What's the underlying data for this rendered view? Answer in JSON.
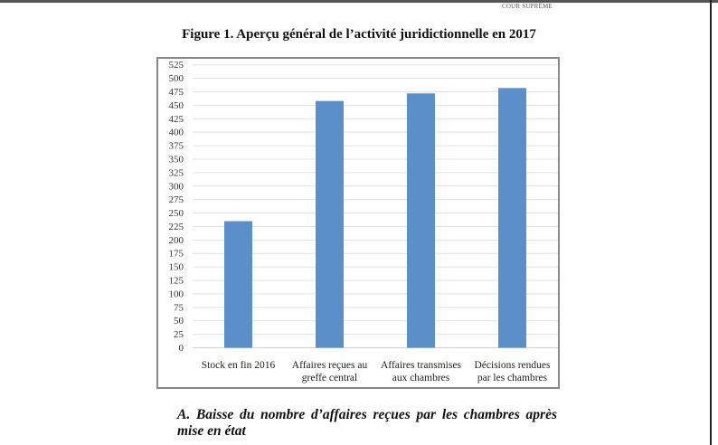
{
  "header": {
    "running_head": "COUR SUPRÊME"
  },
  "figure": {
    "title": "Figure 1. Aperçu général de l’activité juridictionnelle en 2017"
  },
  "chart_data": {
    "type": "bar",
    "title": "",
    "xlabel": "",
    "ylabel": "",
    "categories": [
      [
        "Stock en fin 2016"
      ],
      [
        "Affaires reçues au",
        "greffe central"
      ],
      [
        "Affaires transmises",
        "aux chambres"
      ],
      [
        "Décisions rendues",
        "par les chambres"
      ]
    ],
    "values": [
      235,
      458,
      472,
      482
    ],
    "ylim": [
      0,
      525
    ],
    "yticks": [
      0,
      25,
      50,
      75,
      100,
      125,
      150,
      175,
      200,
      225,
      250,
      275,
      300,
      325,
      350,
      375,
      400,
      425,
      450,
      475,
      500,
      525
    ],
    "grid": true,
    "legend": "none",
    "bar_color": "#5b8fc9"
  },
  "section": {
    "heading": "A. Baisse du nombre d’affaires reçues par les chambres après mise en état"
  }
}
